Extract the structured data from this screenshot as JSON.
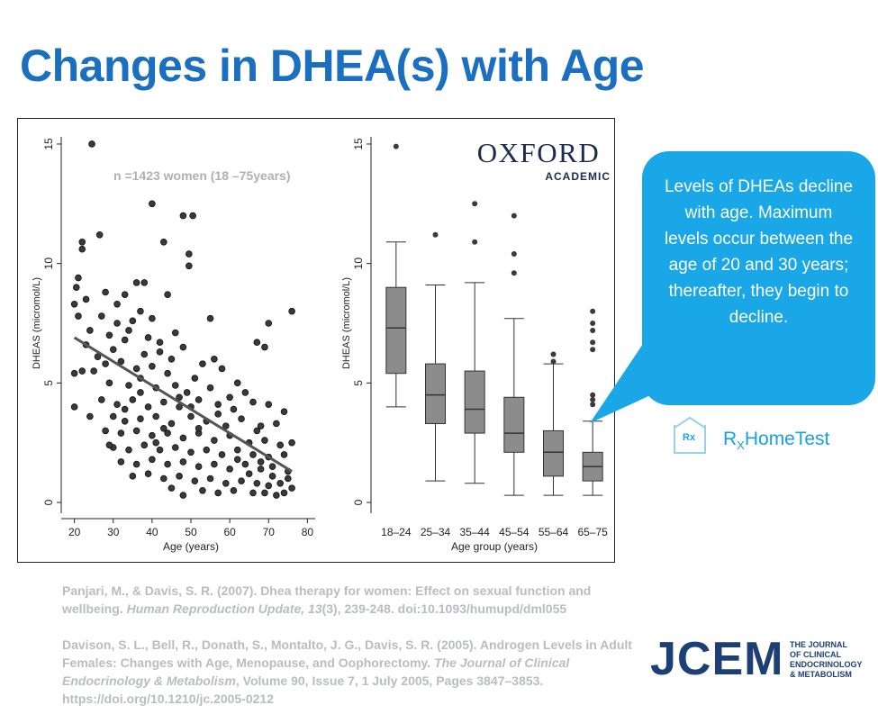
{
  "slide": {
    "title": "Changes in DHEA(s) with Age"
  },
  "figure": {
    "annotation": "n =1423 women (18 –75years)",
    "publisher_logo": {
      "line1": "OXFORD",
      "line2": "ACADEMIC"
    }
  },
  "chart_data": [
    {
      "type": "scatter",
      "title": "",
      "xlabel": "Age (years)",
      "ylabel": "DHEAS (micromol/L)",
      "xlim": [
        18,
        82
      ],
      "ylim": [
        -0.3,
        15.3
      ],
      "xticks": [
        20,
        30,
        40,
        50,
        60,
        70,
        80
      ],
      "yticks": [
        0,
        5,
        10,
        15
      ],
      "grid": false,
      "trend_line": {
        "x": [
          20,
          76
        ],
        "y": [
          6.9,
          1.3
        ]
      },
      "points": [
        {
          "x": 24.5,
          "y": 15.0
        },
        {
          "x": 40,
          "y": 12.5
        },
        {
          "x": 50.5,
          "y": 12.0
        },
        {
          "x": 48,
          "y": 12.0
        },
        {
          "x": 26.5,
          "y": 11.2
        },
        {
          "x": 22,
          "y": 10.9
        },
        {
          "x": 43,
          "y": 10.9
        },
        {
          "x": 22,
          "y": 10.6
        },
        {
          "x": 49.5,
          "y": 10.4
        },
        {
          "x": 49.5,
          "y": 9.9
        },
        {
          "x": 21,
          "y": 9.4
        },
        {
          "x": 20.5,
          "y": 9.0
        },
        {
          "x": 23,
          "y": 8.5
        },
        {
          "x": 28,
          "y": 8.8
        },
        {
          "x": 33,
          "y": 8.7
        },
        {
          "x": 36,
          "y": 9.2
        },
        {
          "x": 38,
          "y": 9.2
        },
        {
          "x": 44,
          "y": 8.7
        },
        {
          "x": 20,
          "y": 8.3
        },
        {
          "x": 31,
          "y": 8.3
        },
        {
          "x": 37,
          "y": 8.0
        },
        {
          "x": 76,
          "y": 8.0
        },
        {
          "x": 21,
          "y": 7.8
        },
        {
          "x": 27,
          "y": 7.8
        },
        {
          "x": 35,
          "y": 7.6
        },
        {
          "x": 40,
          "y": 7.7
        },
        {
          "x": 55,
          "y": 7.7
        },
        {
          "x": 70,
          "y": 7.5
        },
        {
          "x": 24,
          "y": 7.2
        },
        {
          "x": 29,
          "y": 7.0
        },
        {
          "x": 33,
          "y": 6.8
        },
        {
          "x": 42,
          "y": 6.7
        },
        {
          "x": 48,
          "y": 6.5
        },
        {
          "x": 67,
          "y": 6.7
        },
        {
          "x": 69,
          "y": 6.5
        },
        {
          "x": 56,
          "y": 6.0
        },
        {
          "x": 30,
          "y": 6.4
        },
        {
          "x": 38,
          "y": 6.2
        },
        {
          "x": 45,
          "y": 6.0
        },
        {
          "x": 20,
          "y": 5.4
        },
        {
          "x": 22,
          "y": 5.5
        },
        {
          "x": 25,
          "y": 5.5
        },
        {
          "x": 28,
          "y": 5.8
        },
        {
          "x": 32,
          "y": 5.9
        },
        {
          "x": 36,
          "y": 5.6
        },
        {
          "x": 40,
          "y": 5.7
        },
        {
          "x": 44,
          "y": 5.4
        },
        {
          "x": 51,
          "y": 5.2
        },
        {
          "x": 53,
          "y": 5.8
        },
        {
          "x": 58,
          "y": 5.6
        },
        {
          "x": 62,
          "y": 5.0
        },
        {
          "x": 29,
          "y": 5.0
        },
        {
          "x": 34,
          "y": 4.9
        },
        {
          "x": 37,
          "y": 4.6
        },
        {
          "x": 41,
          "y": 4.8
        },
        {
          "x": 46,
          "y": 4.9
        },
        {
          "x": 49,
          "y": 4.6
        },
        {
          "x": 55,
          "y": 4.8
        },
        {
          "x": 60,
          "y": 4.4
        },
        {
          "x": 64,
          "y": 4.6
        },
        {
          "x": 66,
          "y": 4.2
        },
        {
          "x": 20,
          "y": 4.0
        },
        {
          "x": 27,
          "y": 4.3
        },
        {
          "x": 31,
          "y": 4.1
        },
        {
          "x": 35,
          "y": 4.3
        },
        {
          "x": 39,
          "y": 4.0
        },
        {
          "x": 43,
          "y": 4.2
        },
        {
          "x": 47,
          "y": 4.0
        },
        {
          "x": 52,
          "y": 4.3
        },
        {
          "x": 57,
          "y": 4.1
        },
        {
          "x": 61,
          "y": 3.9
        },
        {
          "x": 70,
          "y": 4.1
        },
        {
          "x": 74,
          "y": 3.8
        },
        {
          "x": 24,
          "y": 3.6
        },
        {
          "x": 30,
          "y": 3.6
        },
        {
          "x": 33,
          "y": 3.4
        },
        {
          "x": 37,
          "y": 3.5
        },
        {
          "x": 41,
          "y": 3.6
        },
        {
          "x": 45,
          "y": 3.3
        },
        {
          "x": 50,
          "y": 3.6
        },
        {
          "x": 54,
          "y": 3.4
        },
        {
          "x": 59,
          "y": 3.2
        },
        {
          "x": 63,
          "y": 3.5
        },
        {
          "x": 67,
          "y": 3.0
        },
        {
          "x": 72,
          "y": 3.3
        },
        {
          "x": 28,
          "y": 3.0
        },
        {
          "x": 32,
          "y": 2.9
        },
        {
          "x": 36,
          "y": 3.0
        },
        {
          "x": 40,
          "y": 2.8
        },
        {
          "x": 44,
          "y": 2.9
        },
        {
          "x": 48,
          "y": 2.7
        },
        {
          "x": 52,
          "y": 2.9
        },
        {
          "x": 56,
          "y": 2.6
        },
        {
          "x": 60,
          "y": 2.8
        },
        {
          "x": 65,
          "y": 2.5
        },
        {
          "x": 69,
          "y": 2.6
        },
        {
          "x": 73,
          "y": 2.4
        },
        {
          "x": 76,
          "y": 2.5
        },
        {
          "x": 30,
          "y": 2.3
        },
        {
          "x": 34,
          "y": 2.2
        },
        {
          "x": 38,
          "y": 2.4
        },
        {
          "x": 42,
          "y": 2.2
        },
        {
          "x": 46,
          "y": 2.3
        },
        {
          "x": 50,
          "y": 2.1
        },
        {
          "x": 54,
          "y": 2.2
        },
        {
          "x": 58,
          "y": 2.0
        },
        {
          "x": 62,
          "y": 2.2
        },
        {
          "x": 66,
          "y": 2.0
        },
        {
          "x": 70,
          "y": 1.9
        },
        {
          "x": 74,
          "y": 2.0
        },
        {
          "x": 32,
          "y": 1.7
        },
        {
          "x": 36,
          "y": 1.6
        },
        {
          "x": 40,
          "y": 1.8
        },
        {
          "x": 44,
          "y": 1.6
        },
        {
          "x": 48,
          "y": 1.7
        },
        {
          "x": 52,
          "y": 1.5
        },
        {
          "x": 56,
          "y": 1.6
        },
        {
          "x": 60,
          "y": 1.4
        },
        {
          "x": 64,
          "y": 1.6
        },
        {
          "x": 68,
          "y": 1.4
        },
        {
          "x": 71,
          "y": 1.5
        },
        {
          "x": 75,
          "y": 1.3
        },
        {
          "x": 35,
          "y": 1.1
        },
        {
          "x": 39,
          "y": 1.2
        },
        {
          "x": 43,
          "y": 1.0
        },
        {
          "x": 47,
          "y": 1.1
        },
        {
          "x": 51,
          "y": 0.9
        },
        {
          "x": 55,
          "y": 1.0
        },
        {
          "x": 59,
          "y": 0.8
        },
        {
          "x": 63,
          "y": 0.9
        },
        {
          "x": 67,
          "y": 0.8
        },
        {
          "x": 70,
          "y": 0.7
        },
        {
          "x": 73,
          "y": 0.8
        },
        {
          "x": 76,
          "y": 0.6
        },
        {
          "x": 45,
          "y": 0.6
        },
        {
          "x": 53,
          "y": 0.5
        },
        {
          "x": 61,
          "y": 0.5
        },
        {
          "x": 66,
          "y": 0.4
        },
        {
          "x": 69,
          "y": 0.4
        },
        {
          "x": 72,
          "y": 0.3
        },
        {
          "x": 74,
          "y": 0.4
        },
        {
          "x": 48,
          "y": 0.3
        },
        {
          "x": 57,
          "y": 0.4
        },
        {
          "x": 75,
          "y": 1.0
        },
        {
          "x": 71,
          "y": 1.1
        },
        {
          "x": 68,
          "y": 1.7
        },
        {
          "x": 65,
          "y": 1.2
        },
        {
          "x": 62,
          "y": 1.8
        },
        {
          "x": 39,
          "y": 6.9
        },
        {
          "x": 42,
          "y": 6.3
        },
        {
          "x": 26,
          "y": 6.1
        },
        {
          "x": 31,
          "y": 7.5
        },
        {
          "x": 34,
          "y": 7.2
        },
        {
          "x": 46,
          "y": 7.1
        },
        {
          "x": 23,
          "y": 6.6
        },
        {
          "x": 37,
          "y": 5.2
        },
        {
          "x": 43,
          "y": 3.1
        },
        {
          "x": 47,
          "y": 4.4
        },
        {
          "x": 50,
          "y": 4.0
        },
        {
          "x": 29,
          "y": 2.4
        },
        {
          "x": 33,
          "y": 3.9
        },
        {
          "x": 41,
          "y": 2.5
        },
        {
          "x": 52,
          "y": 3.1
        },
        {
          "x": 57,
          "y": 3.7
        },
        {
          "x": 68,
          "y": 3.2
        }
      ]
    },
    {
      "type": "box",
      "title": "",
      "xlabel": "Age group (years)",
      "ylabel": "DHEAS (micromol/L)",
      "ylim": [
        -0.3,
        15.3
      ],
      "yticks": [
        0,
        5,
        10,
        15
      ],
      "grid": false,
      "categories": [
        "18–24",
        "25–34",
        "35–44",
        "45–54",
        "55–64",
        "65–75"
      ],
      "boxes": [
        {
          "whisker_low": 4.0,
          "q1": 5.4,
          "median": 7.3,
          "q3": 9.0,
          "whisker_high": 10.9,
          "outliers": [
            14.9
          ]
        },
        {
          "whisker_low": 0.9,
          "q1": 3.3,
          "median": 4.5,
          "q3": 5.8,
          "whisker_high": 9.1,
          "outliers": [
            11.2
          ]
        },
        {
          "whisker_low": 0.8,
          "q1": 2.9,
          "median": 3.9,
          "q3": 5.5,
          "whisker_high": 9.2,
          "outliers": [
            10.9,
            12.5
          ]
        },
        {
          "whisker_low": 0.3,
          "q1": 2.1,
          "median": 2.9,
          "q3": 4.4,
          "whisker_high": 7.7,
          "outliers": [
            9.6,
            10.4,
            12.0
          ]
        },
        {
          "whisker_low": 0.3,
          "q1": 1.1,
          "median": 2.1,
          "q3": 3.0,
          "whisker_high": 5.8,
          "outliers": [
            5.9,
            6.2
          ]
        },
        {
          "whisker_low": 0.3,
          "q1": 0.9,
          "median": 1.5,
          "q3": 2.1,
          "whisker_high": 3.4,
          "outliers": [
            4.1,
            4.3,
            4.5,
            6.4,
            6.7,
            7.2,
            7.5,
            8.0
          ]
        }
      ]
    }
  ],
  "callout": {
    "text": "Levels of DHEAs decline with age. Maximum levels occur between the age of 20 and 30 years; thereafter, they begin to decline."
  },
  "brand": {
    "rx_small": "Rx",
    "rx_prefix": "R",
    "rx_sub": "X",
    "rx_name": "HomeTest",
    "accent": "#1aa7e7"
  },
  "references": {
    "ref1_plain_a": "Panjari, M., & Davis, S. R. (2007). Dhea therapy for women: Effect on sexual function and wellbeing. ",
    "ref1_italic": "Human Reproduction Update, 13",
    "ref1_plain_b": "(3), 239-248. doi:10.1093/humupd/dml055",
    "ref2_plain_a": "Davison, S. L., Bell, R., Donath, S., Montalto, J. G., Davis, S. R. (2005). Androgen Levels in Adult Females: Changes with Age, Menopause, and Oophorectomy. ",
    "ref2_italic": "The Journal of Clinical Endocrinology & Metabolism",
    "ref2_plain_b": ", Volume 90, Issue 7, 1 July 2005, Pages 3847–3853. https://doi.org/10.1210/jc.2005-0212"
  },
  "journal_logo": {
    "abbr": "JCEM",
    "line1": "THE JOURNAL",
    "line2": "OF CLINICAL",
    "line3": "ENDOCRINOLOGY",
    "line4": "& METABOLISM",
    "color": "#1d3f78"
  }
}
